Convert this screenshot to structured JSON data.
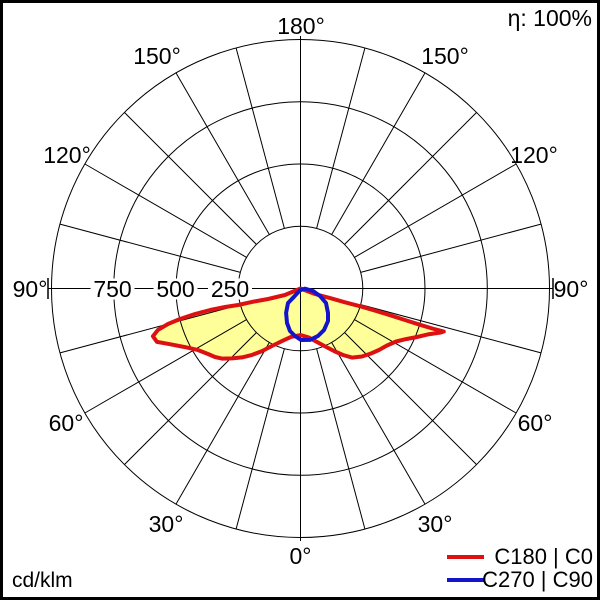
{
  "chart_data": {
    "type": "polar",
    "subtype": "photometric-luminous-intensity-distribution",
    "eta_label": "η: 100%",
    "unit_label": "cd/klm",
    "angle_step_deg": 15,
    "radial_axis": {
      "unit": "cd/klm",
      "max": 1000,
      "ring_values": [
        250,
        500,
        750,
        1000
      ],
      "ring_labels": [
        {
          "text": "750"
        },
        {
          "text": "500"
        },
        {
          "text": "250"
        }
      ]
    },
    "angle_labels": [
      {
        "text": "180°"
      },
      {
        "text": "150°"
      },
      {
        "text": "150°"
      },
      {
        "text": "120°"
      },
      {
        "text": "120°"
      },
      {
        "text": "90°"
      },
      {
        "text": "90°"
      },
      {
        "text": "60°"
      },
      {
        "text": "60°"
      },
      {
        "text": "30°"
      },
      {
        "text": "30°"
      },
      {
        "text": "0°"
      }
    ],
    "legend_position": "bottom-right",
    "grid_color": "#000000",
    "series": [
      {
        "name": "C180 | C0",
        "color": "#dd1111",
        "fill_color": "#ffff99",
        "points_gamma_value": [
          [
            -60,
            0
          ],
          [
            -67.5,
            68
          ],
          [
            -72,
            137
          ],
          [
            -74.5,
            202
          ],
          [
            -75.2,
            259
          ],
          [
            -76.2,
            312
          ],
          [
            -76.6,
            373
          ],
          [
            -76.4,
            436
          ],
          [
            -75.8,
            499
          ],
          [
            -75,
            551
          ],
          [
            -73.8,
            596
          ],
          [
            -72.1,
            623
          ],
          [
            -69.6,
            615
          ],
          [
            -66.9,
            570
          ],
          [
            -63.1,
            520
          ],
          [
            -59,
            480
          ],
          [
            -54.7,
            455
          ],
          [
            -51.3,
            440
          ],
          [
            -48.3,
            423
          ],
          [
            -44.4,
            393
          ],
          [
            -40.3,
            363
          ],
          [
            -36.1,
            330
          ],
          [
            -31.6,
            295
          ],
          [
            -26.4,
            258
          ],
          [
            -19.4,
            224
          ],
          [
            -11.1,
            198
          ],
          [
            0,
            187
          ],
          [
            9.8,
            200
          ],
          [
            17.1,
            225
          ],
          [
            23.6,
            256
          ],
          [
            28.2,
            285
          ],
          [
            32.6,
            317
          ],
          [
            36.7,
            346
          ],
          [
            42.1,
            368
          ],
          [
            47.3,
            385
          ],
          [
            51.9,
            400
          ],
          [
            56.6,
            416
          ],
          [
            61,
            439
          ],
          [
            64.4,
            470
          ],
          [
            67.4,
            507
          ],
          [
            70.2,
            544
          ],
          [
            72.6,
            591
          ],
          [
            73.3,
            601
          ],
          [
            73.1,
            553
          ],
          [
            73.1,
            502
          ],
          [
            73.2,
            438
          ],
          [
            73.4,
            375
          ],
          [
            73.5,
            312
          ],
          [
            73.4,
            249
          ],
          [
            72.8,
            187
          ],
          [
            72.1,
            125
          ],
          [
            69.2,
            62
          ],
          [
            60,
            0
          ]
        ]
      },
      {
        "name": "C270 | C90",
        "color": "#1414cc",
        "fill_color": "none",
        "points_gamma_value": [
          [
            -20,
            8
          ],
          [
            -38,
            42
          ],
          [
            -40.8,
            77
          ],
          [
            -30.6,
            114
          ],
          [
            -21.4,
            149
          ],
          [
            -13.9,
            176
          ],
          [
            -6.6,
            192
          ],
          [
            0.6,
            207
          ],
          [
            10.5,
            210
          ],
          [
            20.2,
            203
          ],
          [
            29.5,
            192
          ],
          [
            40.2,
            171
          ],
          [
            48.3,
            148
          ],
          [
            60.4,
            118
          ],
          [
            69,
            84
          ],
          [
            78.7,
            51
          ],
          [
            88,
            18
          ]
        ]
      }
    ]
  }
}
